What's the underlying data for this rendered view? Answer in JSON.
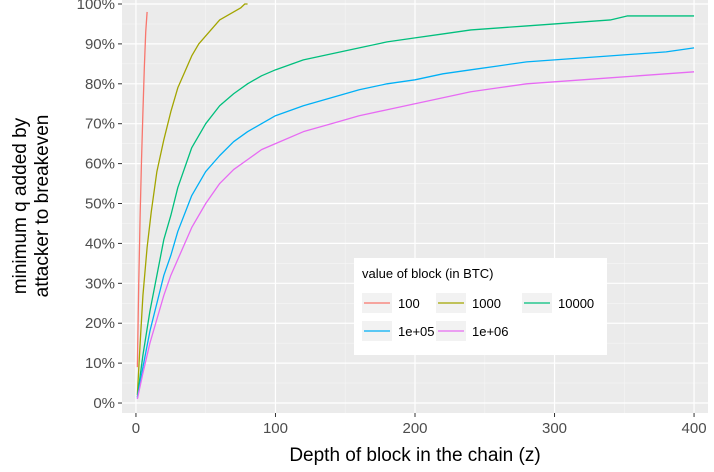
{
  "chart_data": {
    "type": "line",
    "xlabel": "Depth of block in the chain (z)",
    "ylabel_lines": [
      "minimum q added by",
      "attacker to breakeven"
    ],
    "xlim": [
      -10,
      410
    ],
    "ylim": [
      -0.025,
      1.01
    ],
    "x_ticks": [
      0,
      100,
      200,
      300,
      400
    ],
    "x_tick_labels": [
      "0",
      "100",
      "200",
      "300",
      "400"
    ],
    "y_ticks": [
      0,
      0.1,
      0.2,
      0.3,
      0.4,
      0.5,
      0.6,
      0.7,
      0.8,
      0.9,
      1.0
    ],
    "y_tick_labels": [
      "0%",
      "10%",
      "20%",
      "30%",
      "40%",
      "50%",
      "60%",
      "70%",
      "80%",
      "90%",
      "100%"
    ],
    "grid": true,
    "legend": {
      "title": "value of block (in BTC)",
      "placement": "inside-bottom-right"
    },
    "series": [
      {
        "name": "100",
        "color": "#F8766D",
        "points": [
          [
            1,
            0.09
          ],
          [
            2,
            0.3
          ],
          [
            3,
            0.47
          ],
          [
            4,
            0.61
          ],
          [
            5,
            0.73
          ],
          [
            6,
            0.84
          ],
          [
            7,
            0.93
          ],
          [
            8,
            0.98
          ]
        ]
      },
      {
        "name": "1000",
        "color": "#A3A500",
        "points": [
          [
            1,
            0.02
          ],
          [
            3,
            0.15
          ],
          [
            5,
            0.27
          ],
          [
            8,
            0.39
          ],
          [
            11,
            0.48
          ],
          [
            15,
            0.58
          ],
          [
            20,
            0.66
          ],
          [
            25,
            0.73
          ],
          [
            30,
            0.79
          ],
          [
            35,
            0.83
          ],
          [
            40,
            0.87
          ],
          [
            45,
            0.9
          ],
          [
            50,
            0.92
          ],
          [
            55,
            0.94
          ],
          [
            60,
            0.96
          ],
          [
            65,
            0.97
          ],
          [
            70,
            0.98
          ],
          [
            75,
            0.99
          ],
          [
            78,
            1.0
          ],
          [
            80,
            1.0
          ]
        ]
      },
      {
        "name": "10000",
        "color": "#00BF7D",
        "points": [
          [
            1,
            0.015
          ],
          [
            5,
            0.12
          ],
          [
            10,
            0.23
          ],
          [
            15,
            0.32
          ],
          [
            20,
            0.41
          ],
          [
            25,
            0.47
          ],
          [
            30,
            0.54
          ],
          [
            40,
            0.64
          ],
          [
            50,
            0.7
          ],
          [
            60,
            0.745
          ],
          [
            70,
            0.775
          ],
          [
            80,
            0.8
          ],
          [
            90,
            0.82
          ],
          [
            100,
            0.835
          ],
          [
            120,
            0.86
          ],
          [
            140,
            0.875
          ],
          [
            160,
            0.89
          ],
          [
            180,
            0.905
          ],
          [
            200,
            0.915
          ],
          [
            220,
            0.925
          ],
          [
            240,
            0.935
          ],
          [
            260,
            0.94
          ],
          [
            280,
            0.945
          ],
          [
            300,
            0.95
          ],
          [
            320,
            0.955
          ],
          [
            340,
            0.96
          ],
          [
            352,
            0.97
          ],
          [
            380,
            0.97
          ],
          [
            400,
            0.97
          ]
        ]
      },
      {
        "name": "1e+05",
        "color": "#00B0F6",
        "points": [
          [
            1,
            0.012
          ],
          [
            5,
            0.09
          ],
          [
            10,
            0.18
          ],
          [
            15,
            0.25
          ],
          [
            20,
            0.32
          ],
          [
            25,
            0.37
          ],
          [
            30,
            0.43
          ],
          [
            40,
            0.52
          ],
          [
            50,
            0.58
          ],
          [
            60,
            0.62
          ],
          [
            70,
            0.655
          ],
          [
            80,
            0.68
          ],
          [
            90,
            0.7
          ],
          [
            100,
            0.72
          ],
          [
            120,
            0.745
          ],
          [
            140,
            0.765
          ],
          [
            160,
            0.785
          ],
          [
            180,
            0.8
          ],
          [
            200,
            0.81
          ],
          [
            220,
            0.825
          ],
          [
            240,
            0.835
          ],
          [
            260,
            0.845
          ],
          [
            280,
            0.855
          ],
          [
            300,
            0.86
          ],
          [
            320,
            0.865
          ],
          [
            340,
            0.87
          ],
          [
            360,
            0.875
          ],
          [
            380,
            0.88
          ],
          [
            400,
            0.89
          ]
        ]
      },
      {
        "name": "1e+06",
        "color": "#E76BF3",
        "points": [
          [
            1,
            0.01
          ],
          [
            5,
            0.075
          ],
          [
            10,
            0.15
          ],
          [
            15,
            0.21
          ],
          [
            20,
            0.27
          ],
          [
            25,
            0.32
          ],
          [
            30,
            0.36
          ],
          [
            40,
            0.44
          ],
          [
            50,
            0.5
          ],
          [
            60,
            0.55
          ],
          [
            70,
            0.585
          ],
          [
            80,
            0.61
          ],
          [
            90,
            0.635
          ],
          [
            100,
            0.65
          ],
          [
            120,
            0.68
          ],
          [
            140,
            0.7
          ],
          [
            160,
            0.72
          ],
          [
            180,
            0.735
          ],
          [
            200,
            0.75
          ],
          [
            220,
            0.765
          ],
          [
            240,
            0.78
          ],
          [
            260,
            0.79
          ],
          [
            280,
            0.8
          ],
          [
            300,
            0.805
          ],
          [
            320,
            0.81
          ],
          [
            340,
            0.815
          ],
          [
            360,
            0.82
          ],
          [
            380,
            0.825
          ],
          [
            400,
            0.83
          ]
        ]
      }
    ]
  }
}
